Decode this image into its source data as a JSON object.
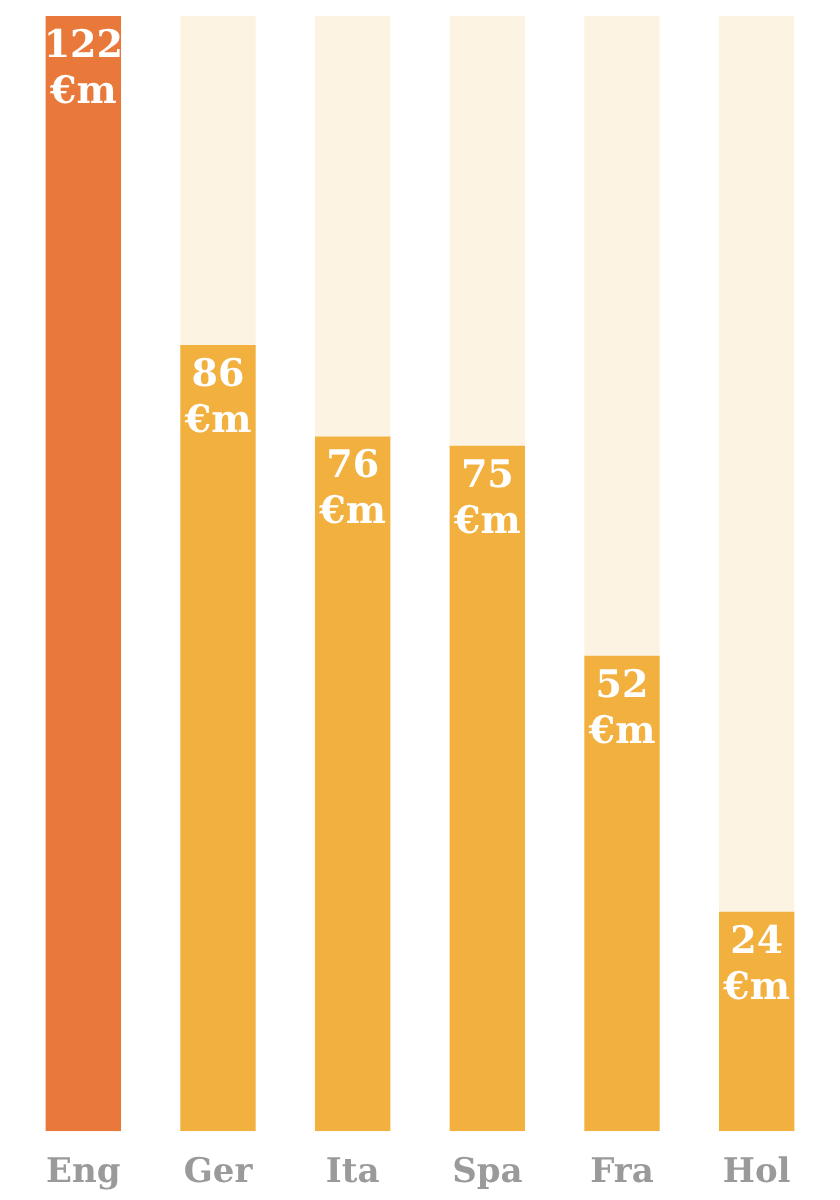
{
  "chart_data": {
    "type": "bar",
    "categories": [
      "Eng",
      "Ger",
      "Ita",
      "Spa",
      "Fra",
      "Hol"
    ],
    "stacked": true,
    "ylim": [
      0,
      122
    ],
    "tick_labels": "x",
    "grid": false,
    "legend": false,
    "series": [
      {
        "colors": [
          "#e8793a",
          "#f2b03f",
          "#f2b03f",
          "#f2b03f",
          "#f2b03f",
          "#f2b03f"
        ],
        "values": [
          122,
          86,
          76,
          75,
          52,
          24
        ],
        "value_labels": [
          "122\n€m",
          "86\n€m",
          "76\n€m",
          "75\n€m",
          "52\n€m",
          "24\n€m"
        ]
      },
      {
        "color": "#fdf3e3",
        "values": [
          0,
          36,
          46,
          47,
          70,
          98
        ]
      }
    ]
  }
}
